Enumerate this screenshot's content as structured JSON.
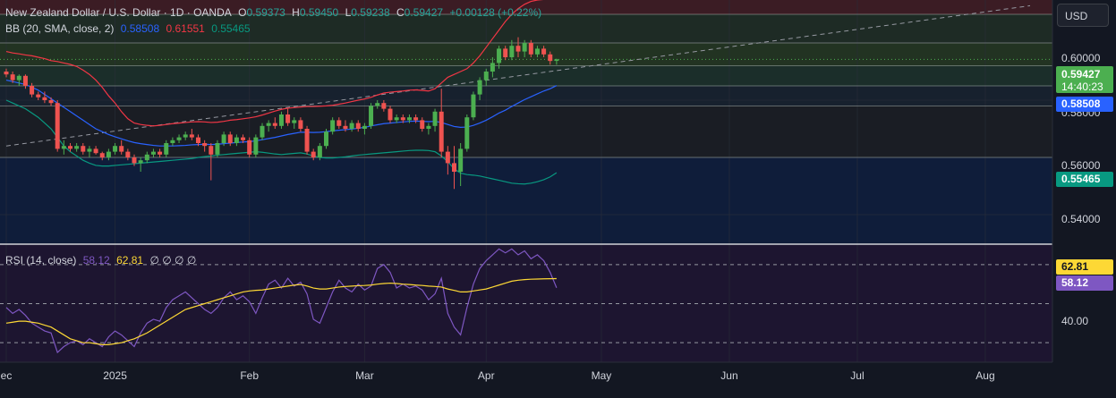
{
  "legend": {
    "symbol": "New Zealand Dollar / U.S. Dollar · 1D · OANDA",
    "open_label": "O",
    "open": "0.59373",
    "high_label": "H",
    "high": "0.59450",
    "low_label": "L",
    "low": "0.59238",
    "close_label": "C",
    "close": "0.59427",
    "change": "+0.00128 (+0.22%)",
    "bb_label": "BB (20, SMA, close, 2)",
    "bb_basis": "0.58508",
    "bb_upper": "0.61551",
    "bb_lower": "0.55465",
    "rsi_label": "RSI (14, close)",
    "rsi_value": "58.12",
    "rsi_ma": "62.81",
    "rsi_extras": "∅ ∅ ∅ ∅"
  },
  "currency_button": "USD",
  "price_axis": {
    "ticks": [
      "0.60000",
      "0.58000",
      "0.56000",
      "0.54000"
    ],
    "last_price": "0.59427",
    "countdown": "14:40:23",
    "basis_tag": "0.58508",
    "lower_tag": "0.55465"
  },
  "rsi_axis": {
    "ticks": [
      "40.00"
    ],
    "ma_tag": "62.81",
    "rsi_tag": "58.12"
  },
  "time_axis": [
    "ec",
    "2025",
    "Feb",
    "Mar",
    "Apr",
    "May",
    "Jun",
    "Jul",
    "Aug"
  ],
  "colors": {
    "up": "#26a69a",
    "up_bright": "#4caf50",
    "down": "#ef5350",
    "basis": "#2962ff",
    "upper": "#f23645",
    "lower": "#089981",
    "rsi": "#7e57c2",
    "rsi_ma": "#fdd835",
    "grid": "#2a2e39"
  },
  "chart_data": {
    "type": "candlestick",
    "ylim": [
      0.53,
      0.615
    ],
    "rsi_ylim": [
      20,
      80
    ],
    "grid": true,
    "candles": [
      {
        "o": 0.59,
        "h": 0.591,
        "l": 0.588,
        "c": 0.589
      },
      {
        "o": 0.589,
        "h": 0.59,
        "l": 0.586,
        "c": 0.587
      },
      {
        "o": 0.587,
        "h": 0.589,
        "l": 0.585,
        "c": 0.5885
      },
      {
        "o": 0.5885,
        "h": 0.589,
        "l": 0.584,
        "c": 0.585
      },
      {
        "o": 0.585,
        "h": 0.586,
        "l": 0.581,
        "c": 0.582
      },
      {
        "o": 0.582,
        "h": 0.583,
        "l": 0.58,
        "c": 0.581
      },
      {
        "o": 0.581,
        "h": 0.583,
        "l": 0.579,
        "c": 0.58
      },
      {
        "o": 0.58,
        "h": 0.581,
        "l": 0.578,
        "c": 0.579
      },
      {
        "o": 0.579,
        "h": 0.58,
        "l": 0.562,
        "c": 0.563
      },
      {
        "o": 0.563,
        "h": 0.566,
        "l": 0.561,
        "c": 0.564
      },
      {
        "o": 0.564,
        "h": 0.565,
        "l": 0.562,
        "c": 0.563
      },
      {
        "o": 0.563,
        "h": 0.565,
        "l": 0.562,
        "c": 0.564
      },
      {
        "o": 0.564,
        "h": 0.565,
        "l": 0.561,
        "c": 0.562
      },
      {
        "o": 0.562,
        "h": 0.564,
        "l": 0.56,
        "c": 0.563
      },
      {
        "o": 0.563,
        "h": 0.564,
        "l": 0.561,
        "c": 0.5615
      },
      {
        "o": 0.5615,
        "h": 0.562,
        "l": 0.559,
        "c": 0.56
      },
      {
        "o": 0.56,
        "h": 0.563,
        "l": 0.559,
        "c": 0.562
      },
      {
        "o": 0.562,
        "h": 0.565,
        "l": 0.561,
        "c": 0.564
      },
      {
        "o": 0.564,
        "h": 0.566,
        "l": 0.561,
        "c": 0.562
      },
      {
        "o": 0.562,
        "h": 0.563,
        "l": 0.559,
        "c": 0.56
      },
      {
        "o": 0.56,
        "h": 0.561,
        "l": 0.557,
        "c": 0.558
      },
      {
        "o": 0.558,
        "h": 0.56,
        "l": 0.555,
        "c": 0.559
      },
      {
        "o": 0.559,
        "h": 0.562,
        "l": 0.558,
        "c": 0.561
      },
      {
        "o": 0.561,
        "h": 0.563,
        "l": 0.56,
        "c": 0.562
      },
      {
        "o": 0.562,
        "h": 0.563,
        "l": 0.56,
        "c": 0.561
      },
      {
        "o": 0.561,
        "h": 0.566,
        "l": 0.56,
        "c": 0.565
      },
      {
        "o": 0.565,
        "h": 0.567,
        "l": 0.564,
        "c": 0.566
      },
      {
        "o": 0.566,
        "h": 0.568,
        "l": 0.565,
        "c": 0.567
      },
      {
        "o": 0.567,
        "h": 0.569,
        "l": 0.566,
        "c": 0.568
      },
      {
        "o": 0.568,
        "h": 0.57,
        "l": 0.566,
        "c": 0.567
      },
      {
        "o": 0.567,
        "h": 0.568,
        "l": 0.564,
        "c": 0.565
      },
      {
        "o": 0.565,
        "h": 0.566,
        "l": 0.562,
        "c": 0.564
      },
      {
        "o": 0.564,
        "h": 0.565,
        "l": 0.552,
        "c": 0.561
      },
      {
        "o": 0.561,
        "h": 0.566,
        "l": 0.56,
        "c": 0.565
      },
      {
        "o": 0.565,
        "h": 0.569,
        "l": 0.564,
        "c": 0.568
      },
      {
        "o": 0.568,
        "h": 0.569,
        "l": 0.564,
        "c": 0.565
      },
      {
        "o": 0.565,
        "h": 0.568,
        "l": 0.564,
        "c": 0.567
      },
      {
        "o": 0.567,
        "h": 0.568,
        "l": 0.565,
        "c": 0.566
      },
      {
        "o": 0.566,
        "h": 0.567,
        "l": 0.56,
        "c": 0.561
      },
      {
        "o": 0.561,
        "h": 0.568,
        "l": 0.56,
        "c": 0.567
      },
      {
        "o": 0.567,
        "h": 0.572,
        "l": 0.566,
        "c": 0.571
      },
      {
        "o": 0.571,
        "h": 0.573,
        "l": 0.569,
        "c": 0.572
      },
      {
        "o": 0.572,
        "h": 0.574,
        "l": 0.57,
        "c": 0.571
      },
      {
        "o": 0.571,
        "h": 0.576,
        "l": 0.57,
        "c": 0.575
      },
      {
        "o": 0.575,
        "h": 0.577,
        "l": 0.571,
        "c": 0.572
      },
      {
        "o": 0.572,
        "h": 0.574,
        "l": 0.57,
        "c": 0.573
      },
      {
        "o": 0.573,
        "h": 0.574,
        "l": 0.569,
        "c": 0.57
      },
      {
        "o": 0.57,
        "h": 0.571,
        "l": 0.561,
        "c": 0.562
      },
      {
        "o": 0.562,
        "h": 0.563,
        "l": 0.559,
        "c": 0.56
      },
      {
        "o": 0.56,
        "h": 0.565,
        "l": 0.559,
        "c": 0.564
      },
      {
        "o": 0.564,
        "h": 0.57,
        "l": 0.563,
        "c": 0.569
      },
      {
        "o": 0.569,
        "h": 0.574,
        "l": 0.568,
        "c": 0.573
      },
      {
        "o": 0.573,
        "h": 0.574,
        "l": 0.57,
        "c": 0.571
      },
      {
        "o": 0.571,
        "h": 0.573,
        "l": 0.569,
        "c": 0.57
      },
      {
        "o": 0.57,
        "h": 0.573,
        "l": 0.569,
        "c": 0.572
      },
      {
        "o": 0.572,
        "h": 0.573,
        "l": 0.569,
        "c": 0.57
      },
      {
        "o": 0.57,
        "h": 0.572,
        "l": 0.568,
        "c": 0.571
      },
      {
        "o": 0.571,
        "h": 0.579,
        "l": 0.57,
        "c": 0.578
      },
      {
        "o": 0.578,
        "h": 0.58,
        "l": 0.577,
        "c": 0.579
      },
      {
        "o": 0.579,
        "h": 0.58,
        "l": 0.576,
        "c": 0.577
      },
      {
        "o": 0.577,
        "h": 0.578,
        "l": 0.572,
        "c": 0.573
      },
      {
        "o": 0.573,
        "h": 0.575,
        "l": 0.572,
        "c": 0.574
      },
      {
        "o": 0.574,
        "h": 0.575,
        "l": 0.572,
        "c": 0.573
      },
      {
        "o": 0.573,
        "h": 0.575,
        "l": 0.572,
        "c": 0.574
      },
      {
        "o": 0.574,
        "h": 0.575,
        "l": 0.572,
        "c": 0.573
      },
      {
        "o": 0.573,
        "h": 0.574,
        "l": 0.569,
        "c": 0.57
      },
      {
        "o": 0.57,
        "h": 0.572,
        "l": 0.568,
        "c": 0.571
      },
      {
        "o": 0.571,
        "h": 0.577,
        "l": 0.569,
        "c": 0.576
      },
      {
        "o": 0.576,
        "h": 0.584,
        "l": 0.56,
        "c": 0.562
      },
      {
        "o": 0.562,
        "h": 0.564,
        "l": 0.554,
        "c": 0.558
      },
      {
        "o": 0.558,
        "h": 0.564,
        "l": 0.549,
        "c": 0.555
      },
      {
        "o": 0.555,
        "h": 0.565,
        "l": 0.55,
        "c": 0.563
      },
      {
        "o": 0.563,
        "h": 0.575,
        "l": 0.562,
        "c": 0.574
      },
      {
        "o": 0.574,
        "h": 0.583,
        "l": 0.573,
        "c": 0.582
      },
      {
        "o": 0.582,
        "h": 0.588,
        "l": 0.58,
        "c": 0.587
      },
      {
        "o": 0.587,
        "h": 0.591,
        "l": 0.585,
        "c": 0.59
      },
      {
        "o": 0.59,
        "h": 0.595,
        "l": 0.588,
        "c": 0.593
      },
      {
        "o": 0.593,
        "h": 0.599,
        "l": 0.591,
        "c": 0.598
      },
      {
        "o": 0.598,
        "h": 0.599,
        "l": 0.594,
        "c": 0.595
      },
      {
        "o": 0.595,
        "h": 0.601,
        "l": 0.594,
        "c": 0.599
      },
      {
        "o": 0.599,
        "h": 0.602,
        "l": 0.595,
        "c": 0.597
      },
      {
        "o": 0.597,
        "h": 0.601,
        "l": 0.595,
        "c": 0.6
      },
      {
        "o": 0.6,
        "h": 0.601,
        "l": 0.595,
        "c": 0.596
      },
      {
        "o": 0.596,
        "h": 0.599,
        "l": 0.595,
        "c": 0.598
      },
      {
        "o": 0.598,
        "h": 0.599,
        "l": 0.595,
        "c": 0.596
      },
      {
        "o": 0.596,
        "h": 0.597,
        "l": 0.5924,
        "c": 0.5937
      },
      {
        "o": 0.59373,
        "h": 0.5945,
        "l": 0.59238,
        "c": 0.59427
      }
    ],
    "bb_basis": [
      0.587,
      0.5865,
      0.586,
      0.5855,
      0.5845,
      0.5835,
      0.582,
      0.5805,
      0.579,
      0.5775,
      0.576,
      0.5745,
      0.573,
      0.5715,
      0.57,
      0.569,
      0.568,
      0.5672,
      0.5665,
      0.5658,
      0.5652,
      0.5648,
      0.5645,
      0.5642,
      0.564,
      0.564,
      0.564,
      0.5641,
      0.5642,
      0.5644,
      0.5645,
      0.5646,
      0.5645,
      0.5646,
      0.5648,
      0.565,
      0.5652,
      0.5654,
      0.5655,
      0.5658,
      0.5662,
      0.5666,
      0.567,
      0.5675,
      0.568,
      0.5684,
      0.5688,
      0.5688,
      0.5687,
      0.5688,
      0.569,
      0.5693,
      0.5695,
      0.5697,
      0.5699,
      0.5702,
      0.5705,
      0.571,
      0.5714,
      0.5718,
      0.572,
      0.5722,
      0.5724,
      0.5726,
      0.5727,
      0.5726,
      0.5725,
      0.5726,
      0.5722,
      0.5715,
      0.5708,
      0.5705,
      0.5706,
      0.5712,
      0.572,
      0.573,
      0.5742,
      0.5755,
      0.5765,
      0.5778,
      0.579,
      0.5802,
      0.5812,
      0.5822,
      0.5832,
      0.584,
      0.5851
    ],
    "bb_upper": [
      0.597,
      0.5965,
      0.5962,
      0.5958,
      0.5955,
      0.595,
      0.5945,
      0.5938,
      0.5935,
      0.593,
      0.5925,
      0.5918,
      0.5905,
      0.589,
      0.587,
      0.5845,
      0.5815,
      0.579,
      0.576,
      0.5735,
      0.572,
      0.5715,
      0.5712,
      0.571,
      0.5712,
      0.5715,
      0.5718,
      0.572,
      0.5722,
      0.5724,
      0.5725,
      0.5724,
      0.5722,
      0.5723,
      0.5726,
      0.573,
      0.5732,
      0.5735,
      0.5738,
      0.5742,
      0.5748,
      0.5755,
      0.5762,
      0.5768,
      0.5772,
      0.5774,
      0.5776,
      0.5778,
      0.5778,
      0.5779,
      0.578,
      0.5782,
      0.5786,
      0.579,
      0.5795,
      0.58,
      0.5804,
      0.581,
      0.5818,
      0.5825,
      0.5828,
      0.583,
      0.5832,
      0.5835,
      0.5836,
      0.5834,
      0.5832,
      0.584,
      0.586,
      0.588,
      0.589,
      0.59,
      0.591,
      0.593,
      0.5955,
      0.5985,
      0.6015,
      0.6045,
      0.6075,
      0.61,
      0.612,
      0.6135,
      0.6145,
      0.615,
      0.6152,
      0.6153,
      0.61551
    ],
    "bb_lower": [
      0.58,
      0.579,
      0.578,
      0.577,
      0.5755,
      0.574,
      0.572,
      0.57,
      0.567,
      0.564,
      0.562,
      0.5605,
      0.559,
      0.558,
      0.5572,
      0.557,
      0.557,
      0.5572,
      0.5574,
      0.5576,
      0.5578,
      0.558,
      0.5582,
      0.5584,
      0.5586,
      0.5588,
      0.559,
      0.5592,
      0.5594,
      0.5596,
      0.56,
      0.5603,
      0.5605,
      0.5608,
      0.561,
      0.5612,
      0.5614,
      0.5616,
      0.5618,
      0.562,
      0.5618,
      0.5615,
      0.5612,
      0.561,
      0.5612,
      0.5614,
      0.5616,
      0.5612,
      0.5605,
      0.56,
      0.5598,
      0.5598,
      0.56,
      0.5602,
      0.5605,
      0.5608,
      0.561,
      0.5612,
      0.5614,
      0.5616,
      0.5618,
      0.562,
      0.5622,
      0.5624,
      0.5625,
      0.5625,
      0.5624,
      0.562,
      0.5605,
      0.5585,
      0.556,
      0.5545,
      0.554,
      0.5538,
      0.5535,
      0.553,
      0.5525,
      0.552,
      0.5515,
      0.551,
      0.5508,
      0.5507,
      0.551,
      0.5515,
      0.5522,
      0.5532,
      0.55465
    ],
    "rsi": [
      48,
      45,
      47,
      44,
      40,
      38,
      36,
      35,
      25,
      28,
      30,
      31,
      29,
      32,
      30,
      28,
      33,
      36,
      34,
      31,
      28,
      35,
      40,
      42,
      41,
      48,
      52,
      54,
      56,
      53,
      50,
      47,
      45,
      48,
      53,
      56,
      52,
      54,
      51,
      45,
      53,
      60,
      62,
      58,
      63,
      59,
      61,
      55,
      42,
      40,
      48,
      56,
      62,
      58,
      56,
      60,
      57,
      59,
      68,
      70,
      66,
      58,
      60,
      58,
      59,
      57,
      52,
      55,
      63,
      45,
      38,
      34,
      48,
      60,
      68,
      72,
      75,
      78,
      76,
      78,
      75,
      77,
      73,
      75,
      72,
      66,
      58.12
    ],
    "rsi_ma": [
      40,
      40.5,
      41,
      41,
      40.5,
      40,
      39,
      38,
      36,
      34,
      32,
      31,
      30,
      30,
      29.5,
      29,
      29,
      29.5,
      30,
      31,
      32,
      33.5,
      35,
      37,
      39,
      41,
      43,
      45,
      47,
      48,
      49,
      50,
      51,
      52,
      53,
      54,
      55,
      56,
      56.5,
      56.8,
      57,
      57.5,
      58,
      58.5,
      59,
      59.5,
      59.8,
      59,
      58,
      57.5,
      57.5,
      58,
      58.5,
      58.8,
      59,
      59.2,
      59.3,
      59.5,
      60,
      60.3,
      60.5,
      60.3,
      60,
      59.8,
      59.5,
      59.3,
      59,
      58.8,
      58.5,
      57.5,
      56.8,
      56,
      56,
      56.5,
      57,
      57.5,
      58.5,
      59.5,
      60.5,
      61.5,
      62,
      62.3,
      62.5,
      62.6,
      62.7,
      62.78,
      62.81
    ],
    "trendline": [
      [
        0,
        0.564
      ],
      [
        160,
        0.613
      ]
    ],
    "hlines": [
      0.61,
      0.6,
      0.592,
      0.585,
      0.578,
      0.56
    ],
    "rsi_levels": [
      70,
      50,
      30
    ],
    "x_labels": [
      {
        "i": 0,
        "t": "ec"
      },
      {
        "i": 17,
        "t": "2025"
      },
      {
        "i": 38,
        "t": "Feb"
      },
      {
        "i": 56,
        "t": "Mar"
      },
      {
        "i": 75,
        "t": "Apr"
      },
      {
        "i": 93,
        "t": "May"
      },
      {
        "i": 113,
        "t": "Jun"
      },
      {
        "i": 133,
        "t": "Jul"
      },
      {
        "i": 153,
        "t": "Aug"
      }
    ]
  }
}
